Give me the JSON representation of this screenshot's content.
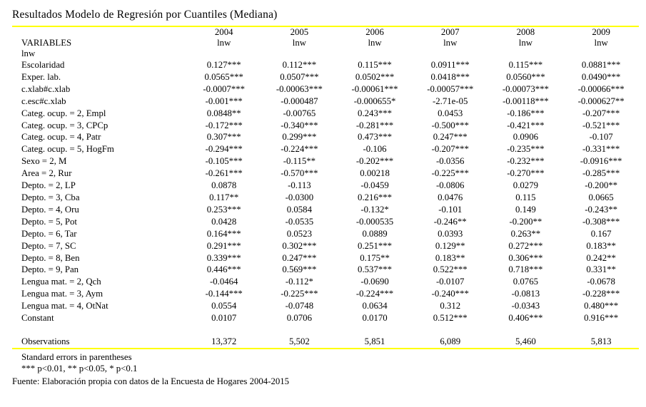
{
  "title": "Resultados Modelo de Regresión por Cuantiles (Mediana)",
  "colors": {
    "rule": "#ffff00",
    "text": "#000000",
    "background": "#ffffff"
  },
  "table": {
    "year_headers": [
      "2004",
      "2005",
      "2006",
      "2007",
      "2008",
      "2009"
    ],
    "variables_label": "VARIABLES",
    "dep_var_labels": [
      "lnw",
      "lnw",
      "lnw",
      "lnw",
      "lnw",
      "lnw"
    ],
    "group_label": "lnw",
    "rows": [
      {
        "label": "Escolaridad",
        "values": [
          "0.127***",
          "0.112***",
          "0.115***",
          "0.0911***",
          "0.115***",
          "0.0881***"
        ]
      },
      {
        "label": "Exper. lab.",
        "values": [
          "0.0565***",
          "0.0507***",
          "0.0502***",
          "0.0418***",
          "0.0560***",
          "0.0490***"
        ]
      },
      {
        "label": "c.xlab#c.xlab",
        "values": [
          "-0.0007***",
          "-0.00063***",
          "-0.00061***",
          "-0.00057***",
          "-0.00073***",
          "-0.00066***"
        ]
      },
      {
        "label": "c.esc#c.xlab",
        "values": [
          "-0.001***",
          "-0.000487",
          "-0.000655*",
          "-2.71e-05",
          "-0.00118***",
          "-0.000627**"
        ]
      },
      {
        "label": "Categ. ocup. = 2, Empl",
        "values": [
          "0.0848**",
          "-0.00765",
          "0.243***",
          "0.0453",
          "-0.186***",
          "-0.207***"
        ]
      },
      {
        "label": "Categ. ocup. = 3, CPCp",
        "values": [
          "-0.172***",
          "-0.340***",
          "-0.281***",
          "-0.500***",
          "-0.421***",
          "-0.521***"
        ]
      },
      {
        "label": "Categ. ocup. = 4, Patr",
        "values": [
          "0.307***",
          "0.299***",
          "0.473***",
          "0.247***",
          "0.0906",
          "-0.107"
        ]
      },
      {
        "label": "Categ. ocup. = 5, HogFm",
        "values": [
          "-0.294***",
          "-0.224***",
          "-0.106",
          "-0.207***",
          "-0.235***",
          "-0.331***"
        ]
      },
      {
        "label": "Sexo = 2, M",
        "values": [
          "-0.105***",
          "-0.115**",
          "-0.202***",
          "-0.0356",
          "-0.232***",
          "-0.0916***"
        ]
      },
      {
        "label": "Area = 2, Rur",
        "values": [
          "-0.261***",
          "-0.570***",
          "0.00218",
          "-0.225***",
          "-0.270***",
          "-0.285***"
        ]
      },
      {
        "label": "Depto. = 2, LP",
        "values": [
          "0.0878",
          "-0.113",
          "-0.0459",
          "-0.0806",
          "0.0279",
          "-0.200**"
        ]
      },
      {
        "label": "Depto. = 3, Cba",
        "values": [
          "0.117**",
          "-0.0300",
          "0.216***",
          "0.0476",
          "0.115",
          "0.0665"
        ]
      },
      {
        "label": "Depto. = 4, Oru",
        "values": [
          "0.253***",
          "0.0584",
          "-0.132*",
          "-0.101",
          "0.149",
          "-0.243**"
        ]
      },
      {
        "label": "Depto. = 5, Pot",
        "values": [
          "0.0428",
          "-0.0535",
          "-0.000535",
          "-0.246**",
          "-0.200**",
          "-0.308***"
        ]
      },
      {
        "label": "Depto. = 6, Tar",
        "values": [
          "0.164***",
          "0.0523",
          "0.0889",
          "0.0393",
          "0.263**",
          "0.167"
        ]
      },
      {
        "label": "Depto. = 7, SC",
        "values": [
          "0.291***",
          "0.302***",
          "0.251***",
          "0.129**",
          "0.272***",
          "0.183**"
        ]
      },
      {
        "label": "Depto. = 8, Ben",
        "values": [
          "0.339***",
          "0.247***",
          "0.175**",
          "0.183**",
          "0.306***",
          "0.242**"
        ]
      },
      {
        "label": "Depto. = 9, Pan",
        "values": [
          "0.446***",
          "0.569***",
          "0.537***",
          "0.522***",
          "0.718***",
          "0.331**"
        ]
      },
      {
        "label": "Lengua mat. = 2, Qch",
        "values": [
          "-0.0464",
          "-0.112*",
          "-0.0690",
          "-0.0107",
          "0.0765",
          "-0.0678"
        ]
      },
      {
        "label": "Lengua mat. = 3, Aym",
        "values": [
          "-0.144***",
          "-0.225***",
          "-0.224***",
          "-0.240***",
          "-0.0813",
          "-0.228***"
        ]
      },
      {
        "label": "Lengua mat. = 4, OtNat",
        "values": [
          "0.0554",
          "-0.0748",
          "0.0634",
          "0.312",
          "-0.0343",
          "0.480***"
        ]
      },
      {
        "label": "Constant",
        "values": [
          "0.0107",
          "0.0706",
          "0.0170",
          "0.512***",
          "0.406***",
          "0.916***"
        ]
      }
    ],
    "observations": {
      "label": "Observations",
      "values": [
        "13,372",
        "5,502",
        "5,851",
        "6,089",
        "5,460",
        "5,813"
      ]
    }
  },
  "notes": [
    "Standard errors in parentheses",
    "*** p<0.01, ** p<0.05, * p<0.1"
  ],
  "source": "Fuente: Elaboración propia con datos de la Encuesta de Hogares 2004-2015"
}
